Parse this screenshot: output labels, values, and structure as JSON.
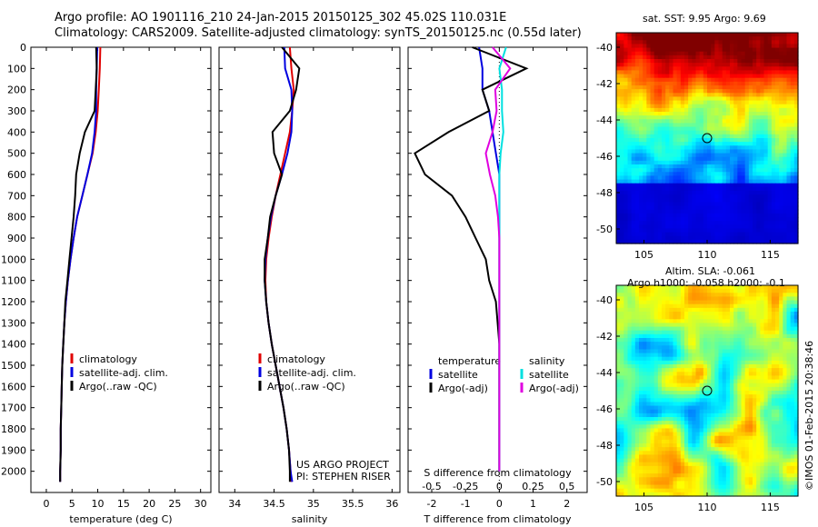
{
  "header": {
    "line1": "Argo profile: AO 1901116_210 24-Jan-2015 20150125_302 45.02S 110.031E",
    "line2": "Climatology: CARS2009. Satellite-adjusted climatology: synTS_20150125.nc (0.55d later)"
  },
  "map_sst": {
    "title": "sat. SST: 9.95 Argo: 9.69"
  },
  "map_sla": {
    "title1": "Altim. SLA: -0.061",
    "title2": "Argo h1000: -0.058 h2000: -0.1"
  },
  "credits": {
    "line1": "US ARGO PROJECT",
    "line2": "PI: STEPHEN RISER"
  },
  "imos_stamp": "©IMOS 01-Feb-2015 20:38:46",
  "colors": {
    "climatology": "#e00000",
    "satellite": "#0000e0",
    "argo": "#000000",
    "sat_salinity": "#00e0e0",
    "argo_salinity": "#e000e0"
  },
  "chart_data": [
    {
      "type": "line",
      "xlabel": "temperature (deg C)",
      "xticks": [
        "0",
        "5",
        "10",
        "15",
        "20",
        "25",
        "30"
      ],
      "xlim": [
        -3,
        32
      ],
      "ylim": [
        0,
        2100
      ],
      "yticks": [
        "0",
        "100",
        "200",
        "300",
        "400",
        "500",
        "600",
        "700",
        "800",
        "900",
        "1000",
        "1100",
        "1200",
        "1300",
        "1400",
        "1500",
        "1600",
        "1700",
        "1800",
        "1900",
        "2000"
      ],
      "legend": [
        "climatology",
        "satellite-adj. clim.",
        "Argo(..raw -QC)"
      ],
      "series": [
        {
          "name": "climatology",
          "color": "#e00000",
          "x": [
            10.5,
            10.4,
            10.2,
            10,
            9.6,
            9.0,
            8.0,
            7.0,
            6.0,
            5.3,
            4.7,
            4.2,
            3.8,
            3.5,
            3.3,
            3.1,
            3.0,
            2.9,
            2.8,
            2.8,
            2.7,
            2.7
          ],
          "y": [
            0,
            100,
            200,
            300,
            400,
            500,
            600,
            700,
            800,
            900,
            1000,
            1100,
            1200,
            1300,
            1400,
            1500,
            1600,
            1700,
            1800,
            1900,
            2000,
            2050
          ]
        },
        {
          "name": "satellite-adj. clim.",
          "color": "#0000e0",
          "x": [
            9.9,
            9.8,
            9.7,
            9.7,
            9.4,
            8.9,
            8.0,
            7.0,
            6.0,
            5.3,
            4.7,
            4.2,
            3.8,
            3.5,
            3.3,
            3.1,
            3.0,
            2.9,
            2.8,
            2.8,
            2.7,
            2.7
          ],
          "y": [
            0,
            100,
            200,
            300,
            400,
            500,
            600,
            700,
            800,
            900,
            1000,
            1100,
            1200,
            1300,
            1400,
            1500,
            1600,
            1700,
            1800,
            1900,
            2000,
            2050
          ]
        },
        {
          "name": "Argo(..raw -QC)",
          "color": "#000000",
          "x": [
            9.7,
            9.8,
            9.6,
            9.4,
            7.5,
            6.5,
            5.8,
            5.6,
            5.3,
            4.9,
            4.5,
            4.1,
            3.7,
            3.5,
            3.3,
            3.1,
            3.0,
            2.9,
            2.8,
            2.8,
            2.7,
            2.7
          ],
          "y": [
            0,
            100,
            200,
            300,
            400,
            500,
            600,
            700,
            800,
            900,
            1000,
            1100,
            1200,
            1300,
            1400,
            1500,
            1600,
            1700,
            1800,
            1900,
            2000,
            2050
          ]
        }
      ]
    },
    {
      "type": "line",
      "xlabel": "salinity",
      "xticks": [
        "34",
        "34.5",
        "35",
        "35.5",
        "36"
      ],
      "xlim": [
        33.8,
        36.1
      ],
      "ylim": [
        0,
        2100
      ],
      "legend": [
        "climatology",
        "satellite-adj. clim.",
        "Argo(..raw -QC)"
      ],
      "series": [
        {
          "name": "climatology",
          "color": "#e00000",
          "x": [
            34.7,
            34.72,
            34.75,
            34.73,
            34.7,
            34.64,
            34.58,
            34.52,
            34.47,
            34.43,
            34.4,
            34.39,
            34.4,
            34.43,
            34.47,
            34.52,
            34.57,
            34.62,
            34.66,
            34.69,
            34.71,
            34.72
          ],
          "y": [
            0,
            100,
            200,
            300,
            400,
            500,
            600,
            700,
            800,
            900,
            1000,
            1100,
            1200,
            1300,
            1400,
            1500,
            1600,
            1700,
            1800,
            1900,
            2000,
            2050
          ]
        },
        {
          "name": "satellite-adj. clim.",
          "color": "#0000e0",
          "x": [
            34.63,
            34.64,
            34.72,
            34.73,
            34.72,
            34.67,
            34.6,
            34.52,
            34.46,
            34.42,
            34.39,
            34.38,
            34.4,
            34.43,
            34.47,
            34.52,
            34.57,
            34.62,
            34.66,
            34.69,
            34.71,
            34.73
          ],
          "y": [
            0,
            100,
            200,
            300,
            400,
            500,
            600,
            700,
            800,
            900,
            1000,
            1100,
            1200,
            1300,
            1400,
            1500,
            1600,
            1700,
            1800,
            1900,
            2000,
            2050
          ]
        },
        {
          "name": "Argo(..raw -QC)",
          "color": "#000000",
          "x": [
            34.6,
            34.82,
            34.78,
            34.7,
            34.48,
            34.5,
            34.6,
            34.52,
            34.45,
            34.42,
            34.38,
            34.38,
            34.4,
            34.43,
            34.47,
            34.52,
            34.57,
            34.62,
            34.66,
            34.69,
            34.7,
            34.7
          ],
          "y": [
            0,
            100,
            200,
            300,
            400,
            500,
            600,
            700,
            800,
            900,
            1000,
            1100,
            1200,
            1300,
            1400,
            1500,
            1600,
            1700,
            1800,
            1900,
            2000,
            2050
          ]
        }
      ]
    },
    {
      "type": "line",
      "xlabel": "T difference from climatology",
      "toplabel": "S difference from climatology",
      "xticks": [
        "-2",
        "-1",
        "0",
        "1",
        "2"
      ],
      "sticks": [
        "-0.5",
        "-0.25",
        "0",
        "0.25",
        "0.5"
      ],
      "xlim": [
        -2.7,
        2.6
      ],
      "ylim": [
        0,
        2100
      ],
      "legend": [
        "temperature",
        "satellite",
        "Argo(-adj)",
        "salinity",
        "satellite",
        "Argo(-adj)"
      ],
      "series": [
        {
          "name": "temperature satellite",
          "color": "#0000e0",
          "x": [
            -0.6,
            -0.5,
            -0.5,
            -0.3,
            -0.2,
            -0.1,
            0,
            0,
            0,
            0,
            0,
            0,
            0,
            0,
            0,
            0,
            0,
            0,
            0,
            0,
            0
          ],
          "y": [
            0,
            100,
            200,
            300,
            400,
            500,
            600,
            700,
            800,
            900,
            1000,
            1100,
            1200,
            1300,
            1400,
            1500,
            1600,
            1700,
            1800,
            1900,
            2000
          ]
        },
        {
          "name": "temperature Argo(-adj)",
          "color": "#000000",
          "x": [
            -0.8,
            0.8,
            -0.5,
            -0.3,
            -1.5,
            -2.5,
            -2.2,
            -1.4,
            -1.0,
            -0.7,
            -0.4,
            -0.3,
            -0.1,
            -0.05,
            0,
            0,
            0,
            0,
            0,
            0,
            0
          ],
          "y": [
            0,
            100,
            200,
            300,
            400,
            500,
            600,
            700,
            800,
            900,
            1000,
            1100,
            1200,
            1300,
            1400,
            1500,
            1600,
            1700,
            1800,
            1900,
            2000
          ]
        },
        {
          "name": "salinity satellite",
          "color": "#00e0e0",
          "x": [
            0.05,
            0,
            0.02,
            0.02,
            0.03,
            0.01,
            0,
            0,
            0,
            0,
            0,
            0,
            0,
            0,
            0,
            0,
            0,
            0,
            0,
            0,
            0
          ],
          "y": [
            0,
            100,
            200,
            300,
            400,
            500,
            600,
            700,
            800,
            900,
            1000,
            1100,
            1200,
            1300,
            1400,
            1500,
            1600,
            1700,
            1800,
            1900,
            2000
          ]
        },
        {
          "name": "salinity Argo(-adj)",
          "color": "#e000e0",
          "x": [
            -0.05,
            0.08,
            -0.03,
            -0.02,
            -0.05,
            -0.1,
            -0.07,
            -0.03,
            -0.01,
            0,
            0,
            0,
            0,
            0,
            0,
            0,
            0,
            0,
            0,
            0,
            0
          ],
          "y": [
            0,
            100,
            200,
            300,
            400,
            500,
            600,
            700,
            800,
            900,
            1000,
            1100,
            1200,
            1300,
            1400,
            1500,
            1600,
            1700,
            1800,
            1900,
            2000
          ]
        }
      ]
    },
    {
      "type": "heatmap",
      "title": "sat. SST: 9.95 Argo: 9.69",
      "xticks": [
        "105",
        "110",
        "115"
      ],
      "yticks": [
        "-40",
        "-42",
        "-44",
        "-46",
        "-48",
        "-50"
      ],
      "xlim": [
        102.8,
        117.2
      ],
      "ylim": [
        -50.8,
        -39.2
      ],
      "marker": [
        110.0,
        -45.0
      ]
    },
    {
      "type": "heatmap",
      "title": "Altim. SLA: -0.061",
      "xticks": [
        "105",
        "110",
        "115"
      ],
      "yticks": [
        "-40",
        "-42",
        "-44",
        "-46",
        "-48",
        "-50"
      ],
      "xlim": [
        102.8,
        117.2
      ],
      "ylim": [
        -50.8,
        -39.2
      ],
      "marker": [
        110.0,
        -45.0
      ]
    }
  ]
}
